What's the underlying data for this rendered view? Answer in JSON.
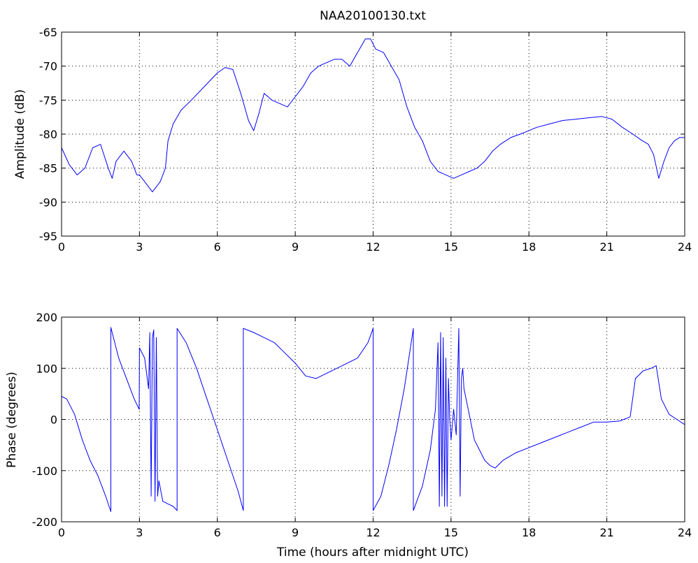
{
  "figure": {
    "title": "NAA20100130.txt"
  },
  "chart_data": [
    {
      "type": "line",
      "title": "NAA20100130.txt",
      "xlabel": "",
      "ylabel": "Amplitude (dB)",
      "xlim": [
        0,
        24
      ],
      "ylim": [
        -95,
        -65
      ],
      "xticks": [
        "0",
        "3",
        "6",
        "9",
        "12",
        "15",
        "18",
        "21",
        "24"
      ],
      "yticks": [
        "-95",
        "-90",
        "-85",
        "-80",
        "-75",
        "-70",
        "-65"
      ],
      "grid": true,
      "color": "#0000ff",
      "series": [
        {
          "x": [
            0,
            0.3,
            0.6,
            0.9,
            1.2,
            1.5,
            1.8,
            1.95,
            2.1,
            2.4,
            2.7,
            2.9,
            3.0,
            3.2,
            3.5,
            3.8,
            4.0,
            4.1,
            4.3,
            4.6,
            5.0,
            5.5,
            6.0,
            6.3,
            6.6,
            6.9,
            7.2,
            7.4,
            7.6,
            7.8,
            8.1,
            8.4,
            8.7,
            9.0,
            9.3,
            9.6,
            9.9,
            10.2,
            10.5,
            10.8,
            11.1,
            11.4,
            11.7,
            11.9,
            12.1,
            12.4,
            12.7,
            13.0,
            13.3,
            13.6,
            13.9,
            14.2,
            14.5,
            14.8,
            15.1,
            15.4,
            15.7,
            16.0,
            16.3,
            16.6,
            16.9,
            17.3,
            17.8,
            18.3,
            18.8,
            19.3,
            19.8,
            20.3,
            20.8,
            21.2,
            21.6,
            22.0,
            22.3,
            22.6,
            22.8,
            23.0,
            23.2,
            23.4,
            23.6,
            23.8,
            24.0
          ],
          "y": [
            -82,
            -84.5,
            -86,
            -85,
            -82,
            -81.5,
            -85,
            -86.5,
            -84,
            -82.5,
            -84,
            -86,
            -86,
            -87,
            -88.5,
            -87,
            -85,
            -81,
            -78.5,
            -76.5,
            -75,
            -73,
            -71,
            -70.2,
            -70.5,
            -74,
            -78,
            -79.5,
            -77,
            -74,
            -75,
            -75.5,
            -76,
            -74.5,
            -73,
            -71,
            -70,
            -69.5,
            -69,
            -69,
            -70,
            -68,
            -66,
            -66,
            -67.5,
            -68,
            -70,
            -72,
            -76,
            -79,
            -81,
            -84,
            -85.5,
            -86,
            -86.5,
            -86,
            -85.5,
            -85,
            -84,
            -82.5,
            -81.5,
            -80.5,
            -79.8,
            -79,
            -78.5,
            -78,
            -77.8,
            -77.6,
            -77.4,
            -77.8,
            -79,
            -80,
            -80.8,
            -81.5,
            -83,
            -86.5,
            -84,
            -82,
            -81,
            -80.5,
            -80.5
          ]
        }
      ]
    },
    {
      "type": "line",
      "title": "",
      "xlabel": "Time (hours after midnight UTC)",
      "ylabel": "Phase (degrees)",
      "xlim": [
        0,
        24
      ],
      "ylim": [
        -200,
        200
      ],
      "xticks": [
        "0",
        "3",
        "6",
        "9",
        "12",
        "15",
        "18",
        "21",
        "24"
      ],
      "yticks": [
        "-200",
        "-100",
        "0",
        "100",
        "200"
      ],
      "grid": true,
      "color": "#0000ff",
      "series": [
        {
          "x": [
            0,
            0.2,
            0.5,
            0.8,
            1.1,
            1.4,
            1.7,
            1.9,
            1.9,
            2.2,
            2.5,
            2.8,
            2.99,
            3.0,
            3.2,
            3.35,
            3.4,
            3.45,
            3.5,
            3.55,
            3.6,
            3.65,
            3.7,
            3.75,
            3.9,
            4.1,
            4.3,
            4.45,
            4.45,
            4.8,
            5.2,
            5.6,
            6.0,
            6.4,
            6.8,
            7.0,
            7.0,
            7.4,
            7.8,
            8.2,
            8.6,
            9.0,
            9.4,
            9.8,
            10.2,
            10.6,
            11.0,
            11.4,
            11.8,
            12.0,
            12.0,
            12.3,
            12.6,
            12.9,
            13.2,
            13.55,
            13.55,
            13.9,
            14.2,
            14.4,
            14.5,
            14.55,
            14.6,
            14.65,
            14.7,
            14.75,
            14.8,
            14.85,
            14.9,
            14.95,
            15.0,
            15.1,
            15.2,
            15.3,
            15.35,
            15.4,
            15.45,
            15.5,
            15.7,
            15.9,
            16.1,
            16.3,
            16.5,
            16.7,
            17.0,
            17.5,
            18.0,
            18.5,
            19.0,
            19.5,
            20.0,
            20.5,
            21.0,
            21.5,
            21.9,
            22.1,
            22.4,
            22.7,
            22.9,
            23.1,
            23.4,
            23.7,
            24.0
          ],
          "y": [
            45,
            40,
            10,
            -40,
            -80,
            -110,
            -150,
            -180,
            180,
            120,
            80,
            40,
            20,
            140,
            120,
            60,
            170,
            -150,
            160,
            175,
            -160,
            160,
            -150,
            -120,
            -160,
            -165,
            -170,
            -178,
            178,
            150,
            100,
            40,
            -20,
            -80,
            -140,
            -178,
            178,
            170,
            160,
            150,
            130,
            110,
            85,
            80,
            90,
            100,
            110,
            120,
            150,
            178,
            -178,
            -150,
            -90,
            -20,
            60,
            178,
            -178,
            -130,
            -60,
            20,
            150,
            -170,
            170,
            -150,
            160,
            -170,
            120,
            -170,
            80,
            0,
            -40,
            20,
            -30,
            178,
            -150,
            80,
            100,
            60,
            10,
            -40,
            -60,
            -80,
            -90,
            -95,
            -80,
            -65,
            -55,
            -45,
            -35,
            -25,
            -15,
            -5,
            -5,
            -3,
            5,
            80,
            95,
            100,
            105,
            40,
            10,
            0,
            -10
          ]
        }
      ]
    }
  ]
}
